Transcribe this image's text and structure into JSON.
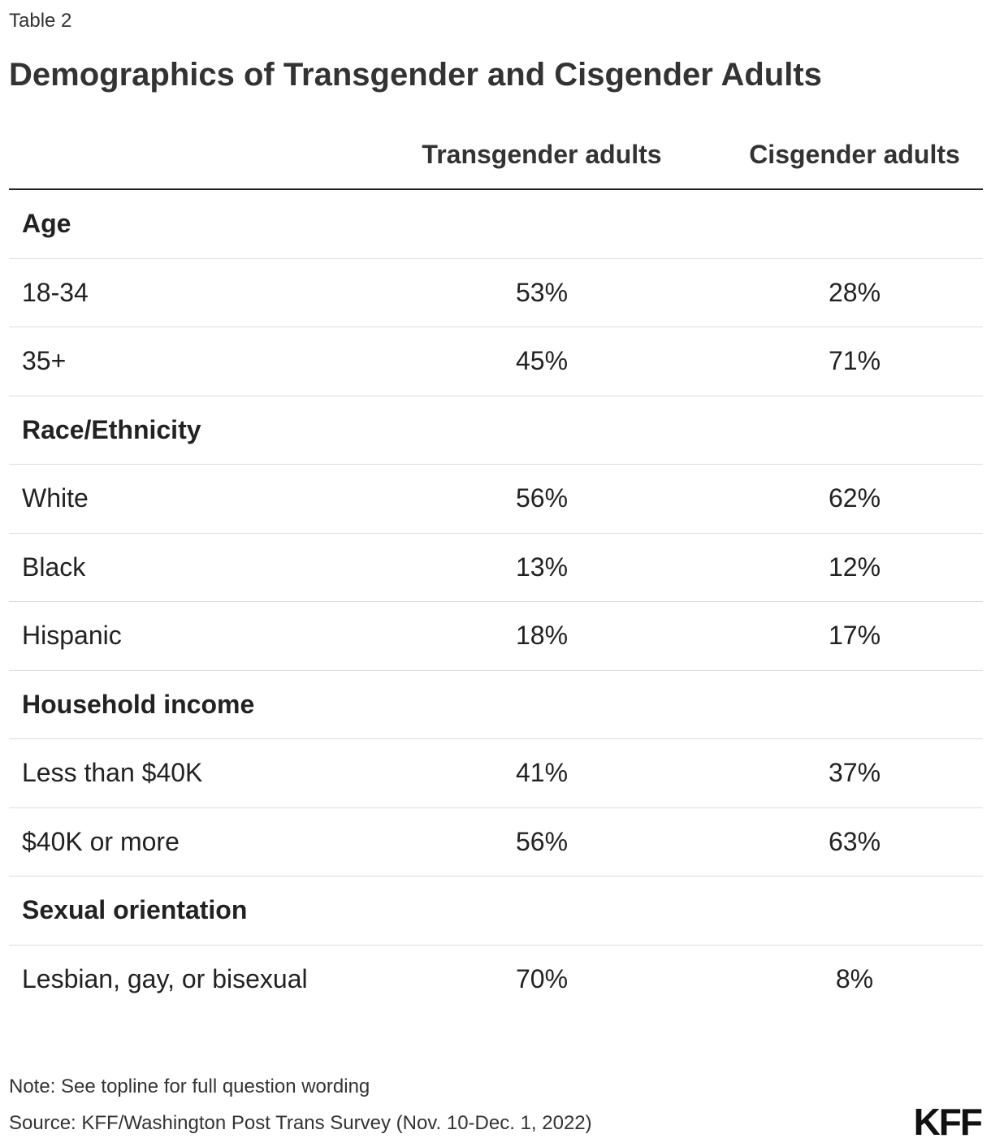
{
  "eyebrow": "Table 2",
  "title": "Demographics of Transgender and Cisgender Adults",
  "note": "Note: See topline for full question wording",
  "source": "Source: KFF/Washington Post Trans Survey (Nov. 10-Dec. 1, 2022)",
  "logo": "KFF",
  "chart_data": {
    "type": "table",
    "title": "Demographics of Transgender and Cisgender Adults",
    "columns": [
      "",
      "Transgender adults",
      "Cisgender adults"
    ],
    "rows": [
      {
        "kind": "group",
        "label": "Age",
        "trans": "",
        "cis": ""
      },
      {
        "kind": "data",
        "label": "18-34",
        "trans": "53%",
        "cis": "28%"
      },
      {
        "kind": "data",
        "label": "35+",
        "trans": "45%",
        "cis": "71%"
      },
      {
        "kind": "group",
        "label": "Race/Ethnicity",
        "trans": "",
        "cis": ""
      },
      {
        "kind": "data",
        "label": "White",
        "trans": "56%",
        "cis": "62%"
      },
      {
        "kind": "data",
        "label": "Black",
        "trans": "13%",
        "cis": "12%"
      },
      {
        "kind": "data",
        "label": "Hispanic",
        "trans": "18%",
        "cis": "17%"
      },
      {
        "kind": "group",
        "label": "Household income",
        "trans": "",
        "cis": ""
      },
      {
        "kind": "data",
        "label": "Less than $40K",
        "trans": "41%",
        "cis": "37%"
      },
      {
        "kind": "data",
        "label": "$40K or more",
        "trans": "56%",
        "cis": "63%"
      },
      {
        "kind": "group",
        "label": "Sexual orientation",
        "trans": "",
        "cis": ""
      },
      {
        "kind": "data",
        "label": "Lesbian, gay, or bisexual",
        "trans": "70%",
        "cis": "8%"
      }
    ]
  }
}
